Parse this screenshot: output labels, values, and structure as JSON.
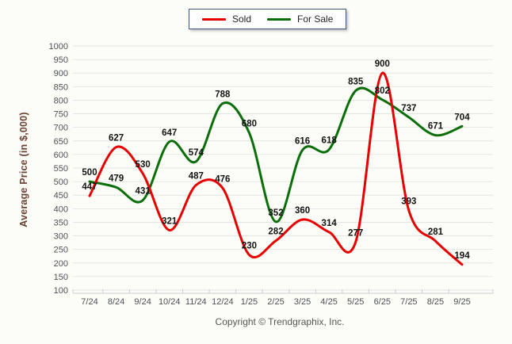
{
  "legend": {
    "items": [
      {
        "label": "Sold",
        "color": "#e60000"
      },
      {
        "label": "For Sale",
        "color": "#0a6e0a"
      }
    ]
  },
  "copyright": "Copyright © Trendgraphix, Inc.",
  "chart_data": {
    "type": "line",
    "title": "",
    "xlabel": "",
    "ylabel": "Average Price (in $,000)",
    "categories": [
      "7/24",
      "8/24",
      "9/24",
      "10/24",
      "11/24",
      "12/24",
      "1/25",
      "2/25",
      "3/25",
      "4/25",
      "5/25",
      "6/25",
      "7/25",
      "8/25",
      "9/25"
    ],
    "series": [
      {
        "name": "Sold",
        "color": "#e60000",
        "values": [
          447,
          627,
          530,
          321,
          487,
          476,
          230,
          282,
          360,
          314,
          277,
          900,
          393,
          281,
          194
        ]
      },
      {
        "name": "For Sale",
        "color": "#0a6e0a",
        "values": [
          500,
          479,
          431,
          647,
          574,
          788,
          680,
          352,
          616,
          618,
          835,
          802,
          737,
          671,
          704
        ]
      }
    ],
    "ylim": [
      100,
      1000
    ],
    "ytick_step": 50,
    "grid": true,
    "smooth": true,
    "legend_position": "top-center",
    "data_labels": true
  },
  "colors": {
    "grid": "#e4e4e4",
    "axis_line": "#c6ccd4",
    "tick_text": "#4d5157",
    "data_label": "#131313",
    "y_title": "#6b4236",
    "legend_border": "#3f5a7d"
  }
}
